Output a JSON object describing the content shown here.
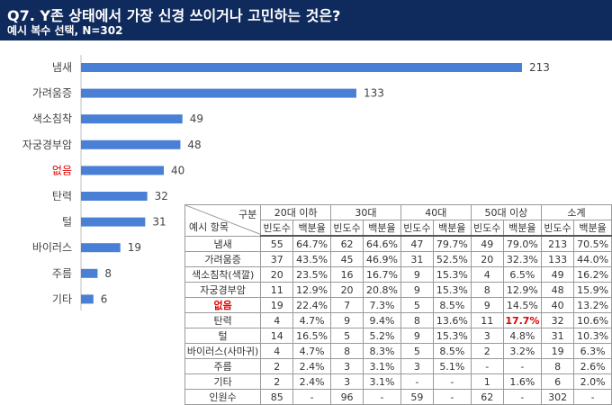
{
  "header": {
    "title": "Q7. Y존 상태에서 가장 신경 쓰이거나 고민하는 것은?",
    "subtitle": "예시 복수 선택, N=302"
  },
  "colors": {
    "header_bg": "#0f2a5c",
    "bar": "#4a7fd6",
    "highlight": "#e00000"
  },
  "chart_data": {
    "type": "bar",
    "orientation": "horizontal",
    "categories": [
      "냄새",
      "가려움증",
      "색소침착",
      "자궁경부암",
      "없음",
      "탄력",
      "털",
      "바이러스",
      "주름",
      "기타"
    ],
    "values": [
      213,
      133,
      49,
      48,
      40,
      32,
      31,
      19,
      8,
      6
    ],
    "xlim": [
      0,
      213
    ],
    "grid": false,
    "legend": "none",
    "table": {
      "corner_top": "구분",
      "corner_bottom": "예시 항목",
      "groups": [
        "20대 이하",
        "30대",
        "40대",
        "50대 이상",
        "소계"
      ],
      "subheaders": [
        "빈도수",
        "백분율"
      ],
      "rows": [
        {
          "label": "냄새",
          "cells": [
            "55",
            "64.7%",
            "62",
            "64.6%",
            "47",
            "79.7%",
            "49",
            "79.0%",
            "213",
            "70.5%"
          ]
        },
        {
          "label": "가려움증",
          "cells": [
            "37",
            "43.5%",
            "45",
            "46.9%",
            "31",
            "52.5%",
            "20",
            "32.3%",
            "133",
            "44.0%"
          ]
        },
        {
          "label": "색소침착(색깔)",
          "cells": [
            "20",
            "23.5%",
            "16",
            "16.7%",
            "9",
            "15.3%",
            "4",
            "6.5%",
            "49",
            "16.2%"
          ]
        },
        {
          "label": "자궁경부암",
          "cells": [
            "11",
            "12.9%",
            "20",
            "20.8%",
            "9",
            "15.3%",
            "8",
            "12.9%",
            "48",
            "15.9%"
          ]
        },
        {
          "label": "없음",
          "cells": [
            "19",
            "22.4%",
            "7",
            "7.3%",
            "5",
            "8.5%",
            "9",
            "14.5%",
            "40",
            "13.2%"
          ]
        },
        {
          "label": "탄력",
          "cells": [
            "4",
            "4.7%",
            "9",
            "9.4%",
            "8",
            "13.6%",
            "11",
            "17.7%",
            "32",
            "10.6%"
          ]
        },
        {
          "label": "털",
          "cells": [
            "14",
            "16.5%",
            "5",
            "5.2%",
            "9",
            "15.3%",
            "3",
            "4.8%",
            "31",
            "10.3%"
          ]
        },
        {
          "label": "바이러스(사마귀)",
          "cells": [
            "4",
            "4.7%",
            "8",
            "8.3%",
            "5",
            "8.5%",
            "2",
            "3.2%",
            "19",
            "6.3%"
          ]
        },
        {
          "label": "주름",
          "cells": [
            "2",
            "2.4%",
            "3",
            "3.1%",
            "3",
            "5.1%",
            "-",
            "-",
            "8",
            "2.6%"
          ]
        },
        {
          "label": "기타",
          "cells": [
            "2",
            "2.4%",
            "3",
            "3.1%",
            "-",
            "-",
            "1",
            "1.6%",
            "6",
            "2.0%"
          ]
        },
        {
          "label": "인원수",
          "cells": [
            "85",
            "-",
            "96",
            "-",
            "59",
            "-",
            "62",
            "-",
            "302",
            "-"
          ]
        }
      ]
    }
  }
}
